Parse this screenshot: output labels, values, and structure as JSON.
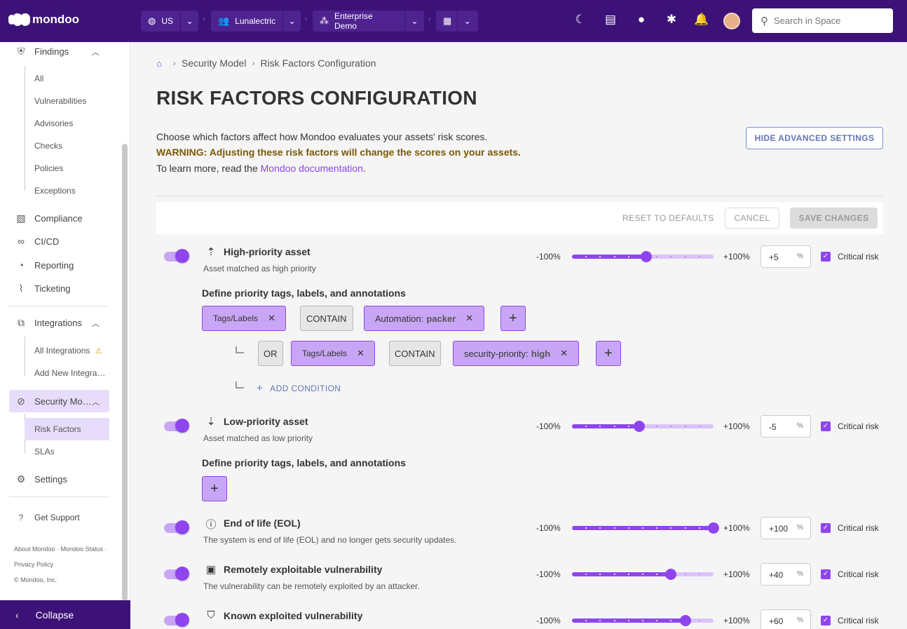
{
  "topbar": {
    "brand": "mondoo",
    "region": "US",
    "org": "Lunalectric",
    "space": "Enterprise Demo",
    "search_placeholder": "Search in Space"
  },
  "sidebar": {
    "findings": "Findings",
    "findings_items": [
      "All",
      "Vulnerabilities",
      "Advisories",
      "Checks",
      "Policies",
      "Exceptions"
    ],
    "compliance": "Compliance",
    "cicd": "CI/CD",
    "reporting": "Reporting",
    "ticketing": "Ticketing",
    "integrations": "Integrations",
    "integrations_items": [
      "All Integrations",
      "Add New Integra…"
    ],
    "security_model": "Security Mo…",
    "security_items": [
      "Risk Factors",
      "SLAs"
    ],
    "settings": "Settings",
    "support": "Get Support",
    "footer_line1": "About Mondoo · Mondoo Status ·",
    "footer_line2": "Privacy Policy",
    "footer_line3": "© Mondoo, Inc.",
    "collapse": "Collapse"
  },
  "breadcrumb": [
    "Security Model",
    "Risk Factors Configuration"
  ],
  "page": {
    "title": "RISK FACTORS CONFIGURATION",
    "intro": "Choose which factors affect how Mondoo evaluates your assets' risk scores.",
    "warning": "WARNING: Adjusting these risk factors will change the scores on your assets.",
    "learn_prefix": "To learn more, read the ",
    "learn_link": "Mondoo documentation",
    "learn_suffix": ".",
    "hide_advanced": "HIDE ADVANCED SETTINGS"
  },
  "actions": {
    "reset": "RESET TO DEFAULTS",
    "cancel": "CANCEL",
    "save": "SAVE CHANGES"
  },
  "slider_labels": {
    "min": "-100%",
    "max": "+100%",
    "unit": "%",
    "critical": "Critical risk"
  },
  "factors": [
    {
      "title": "High-priority asset",
      "desc": "Asset matched as high priority",
      "value": "+5",
      "fraction": 0.525,
      "icon": "priority-up-icon"
    },
    {
      "title": "Low-priority asset",
      "desc": "Asset matched as low priority",
      "value": "-5",
      "fraction": 0.475,
      "icon": "priority-down-icon"
    },
    {
      "title": "End of life (EOL)",
      "desc": "The system is end of life (EOL) and no longer gets security updates.",
      "value": "+100",
      "fraction": 1.0,
      "icon": "alert-circle-icon"
    },
    {
      "title": "Remotely exploitable vulnerability",
      "desc": "The vulnerability can be remotely exploited by an attacker.",
      "value": "+40",
      "fraction": 0.7,
      "icon": "terminal-icon"
    },
    {
      "title": "Known exploited vulnerability",
      "desc": "",
      "value": "+60",
      "fraction": 0.8,
      "icon": "shield-icon"
    }
  ],
  "conditions": {
    "define_label": "Define priority tags, labels, and annotations",
    "tags_labels": "Tags/Labels",
    "contain": "CONTAIN",
    "or": "OR",
    "tag1_key": "Automation:",
    "tag1_val": "packer",
    "tag2_key": "security-priority:",
    "tag2_val": "high",
    "add_condition": "ADD CONDITION"
  },
  "colors": {
    "header": "#3c1278",
    "accent": "#8f45ee",
    "accent_light": "#c9a6f5"
  }
}
